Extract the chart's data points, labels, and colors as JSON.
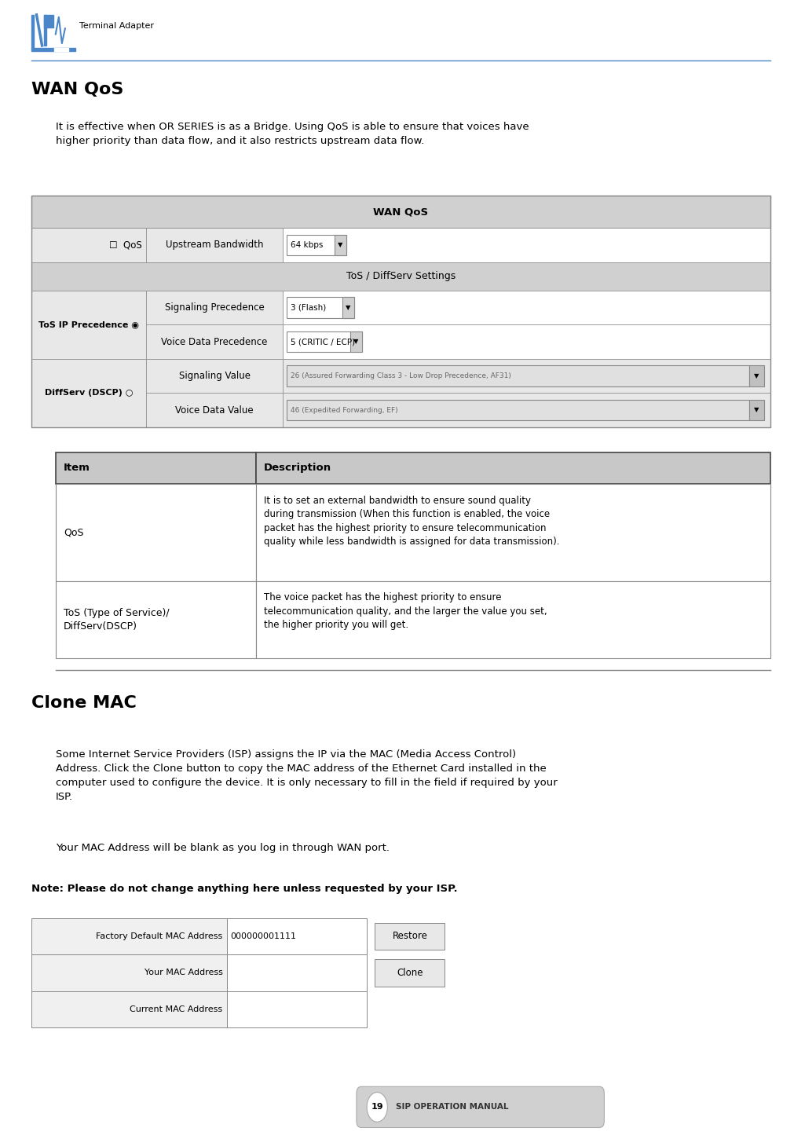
{
  "page_width": 10.11,
  "page_height": 14.5,
  "bg_color": "#ffffff",
  "header_logo_text": "Terminal Adapter",
  "section1_title": "WAN QoS",
  "section1_intro": "It is effective when OR SERIES is as a Bridge. Using QoS is able to ensure that voices have\nhigher priority than data flow, and it also restricts upstream data flow.",
  "wan_qos_header": "WAN QoS",
  "tos_section": "ToS / DiffServ Settings",
  "desc_table_headers": [
    "Item",
    "Description"
  ],
  "desc_rows": [
    {
      "item": "QoS",
      "desc": "It is to set an external bandwidth to ensure sound quality\nduring transmission (When this function is enabled, the voice\npacket has the highest priority to ensure telecommunication\nquality while less bandwidth is assigned for data transmission)."
    },
    {
      "item": "ToS (Type of Service)/\nDiffServ(DSCP)",
      "desc": "The voice packet has the highest priority to ensure\ntelecommunication quality, and the larger the value you set,\nthe higher priority you will get."
    }
  ],
  "section2_title": "Clone MAC",
  "clone_para": "Some Internet Service Providers (ISP) assigns the IP via the MAC (Media Access Control)\nAddress. Click the Clone button to copy the MAC address of the Ethernet Card installed in the\ncomputer used to configure the device. It is only necessary to fill in the field if required by your\nISP.",
  "mac_addr_para": "Your MAC Address will be blank as you log in through WAN port.",
  "note_text": "Note: Please do not change anything here unless requested by your ISP.",
  "mac_table_rows": [
    {
      "label": "Factory Default MAC Address",
      "value": "000000001111",
      "button": "Restore"
    },
    {
      "label": "Your MAC Address",
      "value": "",
      "button": "Clone"
    },
    {
      "label": "Current MAC Address",
      "value": "",
      "button": null
    }
  ],
  "footer_page": "19",
  "footer_text": "SIP OPERATION MANUAL",
  "blue_color": "#4a86c8",
  "border_color": "#888888",
  "header_bg": "#d0d0d0",
  "section_bg": "#d0d0d0",
  "cell_bg": "#e8e8e8",
  "desc_header_bg": "#c8c8c8"
}
